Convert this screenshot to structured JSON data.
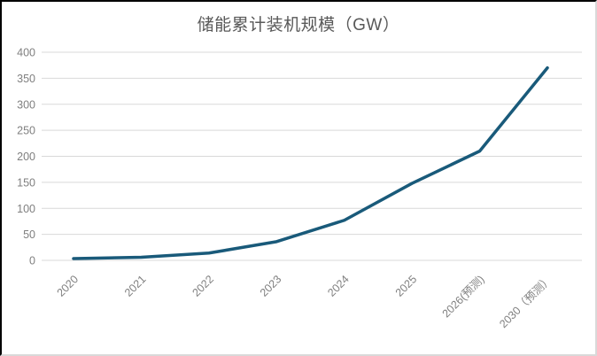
{
  "chart_data": {
    "type": "line",
    "title": "储能累计装机规模（GW）",
    "categories": [
      "2020",
      "2021",
      "2022",
      "2023",
      "2024",
      "2025",
      "2026(预测)",
      "2030（预测）"
    ],
    "values": [
      3.5,
      6,
      14,
      36,
      77,
      148,
      210,
      370
    ],
    "series_name": "储能累计装机规模",
    "xlabel": "",
    "ylabel": "",
    "ylim": [
      0,
      400
    ],
    "ytick_step": 50,
    "y_tick_labels": [
      "0",
      "50",
      "100",
      "150",
      "200",
      "250",
      "300",
      "350",
      "400"
    ],
    "grid": "horizontal",
    "legend": "none",
    "colors": {
      "line": "#195a7a",
      "title_text": "#595959",
      "axis_text": "#7f7f7f",
      "gridline": "#d9d9d9",
      "background": "#ffffff",
      "border_dark": "#000000",
      "border_light": "#d9d9d9"
    }
  }
}
